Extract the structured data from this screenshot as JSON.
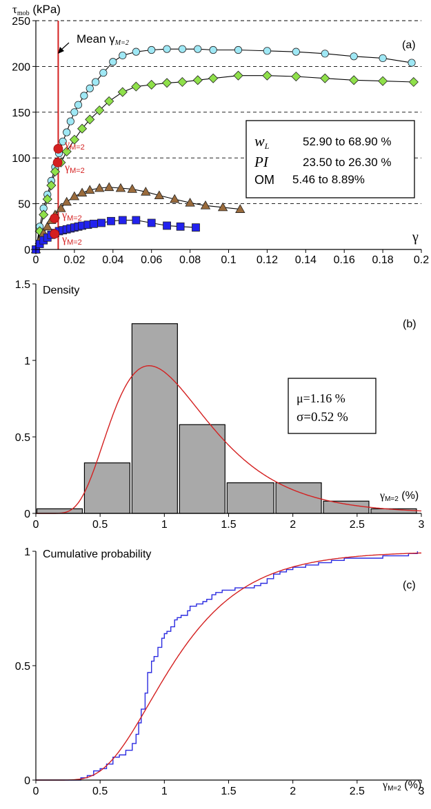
{
  "chart_data": [
    {
      "panel": "(a)",
      "type": "scatter",
      "ylabel_main": "τ",
      "ylabel_sub": "mob",
      "ylabel_unit": " (kPa)",
      "xlabel": "γ",
      "xlim": [
        0,
        0.2
      ],
      "ylim": [
        0,
        250
      ],
      "xticks": [
        "0",
        "0.02",
        "0.04",
        "0.06",
        "0.08",
        "0.1",
        "0.12",
        "0.14",
        "0.16",
        "0.18",
        "0.2"
      ],
      "yticks": [
        "0",
        "50",
        "100",
        "150",
        "200",
        "250"
      ],
      "grid": "dashed horizontal",
      "mean_line": {
        "x": 0.0116,
        "label": "Mean γ",
        "label_sub": "M=2",
        "color": "#d42020"
      },
      "marker_labels": {
        "main": "γ",
        "sub": "M=2"
      },
      "series": [
        {
          "marker": "circle",
          "color": "#9fe8f5",
          "x": [
            0,
            0.002,
            0.004,
            0.006,
            0.008,
            0.01,
            0.012,
            0.014,
            0.016,
            0.018,
            0.02,
            0.022,
            0.025,
            0.028,
            0.031,
            0.035,
            0.04,
            0.045,
            0.052,
            0.06,
            0.068,
            0.076,
            0.084,
            0.092,
            0.105,
            0.12,
            0.135,
            0.15,
            0.165,
            0.18,
            0.195
          ],
          "y": [
            0,
            25,
            45,
            60,
            75,
            90,
            105,
            118,
            128,
            140,
            150,
            158,
            168,
            176,
            183,
            193,
            205,
            212,
            216,
            218,
            219,
            219,
            219,
            218,
            218,
            217,
            216,
            214,
            211,
            209,
            204
          ]
        },
        {
          "marker": "diamond",
          "color": "#8fe04a",
          "x": [
            0,
            0.002,
            0.004,
            0.006,
            0.008,
            0.01,
            0.013,
            0.016,
            0.02,
            0.024,
            0.028,
            0.033,
            0.038,
            0.045,
            0.052,
            0.06,
            0.068,
            0.076,
            0.084,
            0.092,
            0.105,
            0.12,
            0.135,
            0.15,
            0.165,
            0.18,
            0.196
          ],
          "y": [
            0,
            20,
            38,
            55,
            70,
            85,
            95,
            107,
            120,
            132,
            142,
            152,
            162,
            172,
            178,
            180,
            182,
            183,
            185,
            187,
            190,
            190,
            189,
            187,
            185,
            184,
            183
          ]
        },
        {
          "marker": "triangle",
          "color": "#9a6b3c",
          "x": [
            0,
            0.002,
            0.004,
            0.006,
            0.008,
            0.01,
            0.013,
            0.016,
            0.02,
            0.024,
            0.028,
            0.033,
            0.038,
            0.044,
            0.05,
            0.057,
            0.064,
            0.072,
            0.08,
            0.088,
            0.097,
            0.106
          ],
          "y": [
            0,
            10,
            18,
            25,
            32,
            38,
            45,
            52,
            58,
            62,
            65,
            67,
            68,
            67,
            66,
            63,
            59,
            55,
            51,
            48,
            46,
            44
          ]
        },
        {
          "marker": "square",
          "color": "#2222ee",
          "x": [
            0,
            0.002,
            0.004,
            0.006,
            0.008,
            0.01,
            0.012,
            0.014,
            0.016,
            0.018,
            0.02,
            0.022,
            0.024,
            0.027,
            0.03,
            0.034,
            0.039,
            0.045,
            0.052,
            0.06,
            0.068,
            0.075,
            0.083
          ],
          "y": [
            0,
            6,
            10,
            13,
            16,
            18,
            20,
            21,
            22,
            23,
            24,
            25,
            26,
            27,
            28,
            29,
            31,
            32,
            32,
            29,
            26,
            25,
            24
          ]
        }
      ],
      "mobilized_points": {
        "color": "#d42020",
        "x": [
          0.0116,
          0.0113,
          0.0097,
          0.0097
        ],
        "y": [
          110,
          95,
          34,
          17
        ]
      },
      "info_box": {
        "rows": [
          {
            "label": "w",
            "label_sub": "L",
            "value": "52.90 to 68.90 %"
          },
          {
            "label": "PI",
            "label_sub": "",
            "value": "23.50 to 26.30 %"
          },
          {
            "label": "OM",
            "label_sub": "",
            "value": "5.46 to 8.89%"
          }
        ]
      }
    },
    {
      "panel": "(b)",
      "type": "bar",
      "title": "Density",
      "xlabel": "γ",
      "xlabel_sub": "M=2",
      "xlabel_unit": " (%)",
      "xlim": [
        0,
        3
      ],
      "ylim": [
        0,
        1.5
      ],
      "xticks": [
        "0",
        "0.5",
        "1",
        "1.5",
        "2",
        "2.5",
        "3"
      ],
      "yticks": [
        "0",
        "0.5",
        "1",
        "1.5"
      ],
      "bin_edges": [
        0,
        0.37,
        0.74,
        1.11,
        1.48,
        1.86,
        2.23,
        2.6,
        2.97
      ],
      "values": [
        0.03,
        0.33,
        1.24,
        0.58,
        0.2,
        0.2,
        0.08,
        0.03
      ],
      "bar_color": "#a9a9a9",
      "fit": {
        "type": "lognormal",
        "color": "#d42020",
        "mu_pct": 1.16,
        "sigma_pct": 0.52
      },
      "stats_box": {
        "mu": "μ=1.16 %",
        "sigma": "σ=0.52 %"
      }
    },
    {
      "panel": "(c)",
      "type": "line",
      "title": "Cumulative probability",
      "xlabel": "γ",
      "xlabel_sub": "M=2",
      "xlabel_unit": " (%)",
      "xlim": [
        0,
        3
      ],
      "ylim": [
        0,
        1
      ],
      "xticks": [
        "0",
        "0.5",
        "1",
        "1.5",
        "2",
        "2.5",
        "3"
      ],
      "yticks": [
        "0",
        "0.5",
        "1"
      ],
      "series": [
        {
          "kind": "empirical",
          "color": "#2a2ae0",
          "x": [
            0.3,
            0.35,
            0.4,
            0.45,
            0.5,
            0.55,
            0.6,
            0.65,
            0.7,
            0.75,
            0.78,
            0.8,
            0.82,
            0.85,
            0.87,
            0.9,
            0.92,
            0.95,
            0.98,
            1.0,
            1.02,
            1.05,
            1.08,
            1.1,
            1.13,
            1.15,
            1.18,
            1.2,
            1.25,
            1.3,
            1.33,
            1.37,
            1.4,
            1.45,
            1.5,
            1.55,
            1.6,
            1.7,
            1.75,
            1.8,
            1.85,
            1.9,
            1.95,
            2.0,
            2.05,
            2.1,
            2.2,
            2.3,
            2.4,
            2.5,
            2.6,
            2.7,
            2.8,
            2.9,
            2.97
          ],
          "y": [
            0,
            0.01,
            0.02,
            0.04,
            0.05,
            0.07,
            0.1,
            0.11,
            0.13,
            0.16,
            0.2,
            0.25,
            0.31,
            0.38,
            0.47,
            0.52,
            0.54,
            0.58,
            0.62,
            0.64,
            0.65,
            0.67,
            0.7,
            0.71,
            0.72,
            0.72,
            0.74,
            0.76,
            0.77,
            0.78,
            0.79,
            0.81,
            0.82,
            0.83,
            0.83,
            0.84,
            0.84,
            0.85,
            0.86,
            0.88,
            0.9,
            0.91,
            0.92,
            0.93,
            0.93,
            0.94,
            0.95,
            0.96,
            0.97,
            0.97,
            0.97,
            0.98,
            0.98,
            0.99,
            1.0
          ]
        },
        {
          "kind": "fitted",
          "color": "#d42020",
          "mu_pct": 1.16,
          "sigma_pct": 0.52
        }
      ]
    }
  ]
}
